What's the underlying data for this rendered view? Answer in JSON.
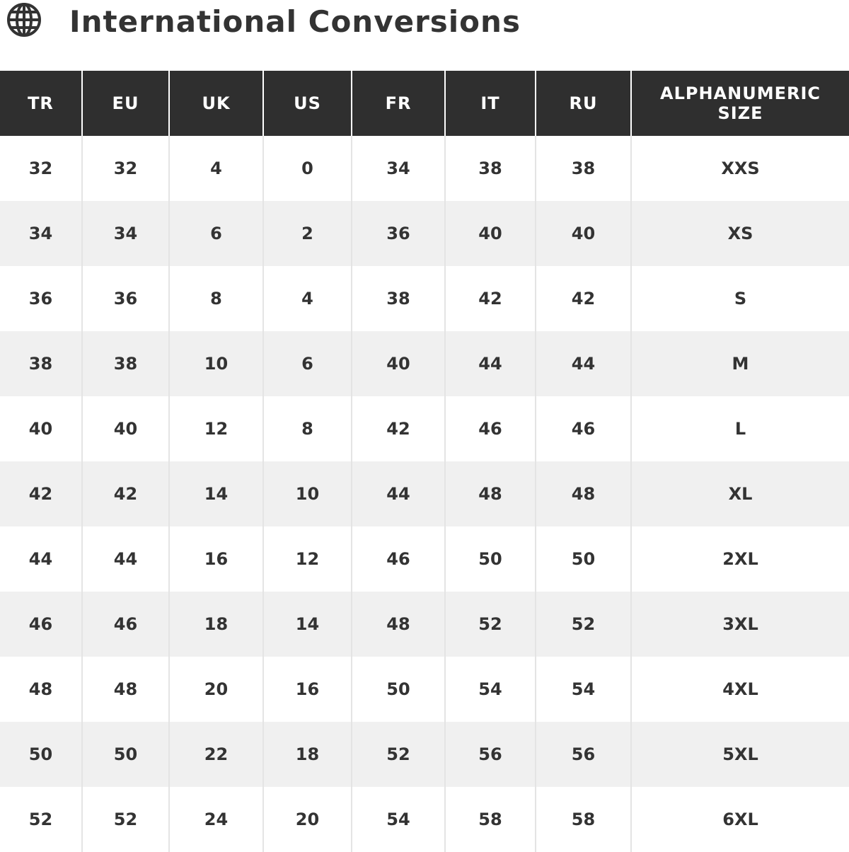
{
  "header": {
    "title": "International Conversions",
    "icon": "globe-icon"
  },
  "table": {
    "columns": [
      "TR",
      "EU",
      "UK",
      "US",
      "FR",
      "IT",
      "RU",
      "ALPHANUMERIC SIZE"
    ],
    "rows": [
      [
        "32",
        "32",
        "4",
        "0",
        "34",
        "38",
        "38",
        "XXS"
      ],
      [
        "34",
        "34",
        "6",
        "2",
        "36",
        "40",
        "40",
        "XS"
      ],
      [
        "36",
        "36",
        "8",
        "4",
        "38",
        "42",
        "42",
        "S"
      ],
      [
        "38",
        "38",
        "10",
        "6",
        "40",
        "44",
        "44",
        "M"
      ],
      [
        "40",
        "40",
        "12",
        "8",
        "42",
        "46",
        "46",
        "L"
      ],
      [
        "42",
        "42",
        "14",
        "10",
        "44",
        "48",
        "48",
        "XL"
      ],
      [
        "44",
        "44",
        "16",
        "12",
        "46",
        "50",
        "50",
        "2XL"
      ],
      [
        "46",
        "46",
        "18",
        "14",
        "48",
        "52",
        "52",
        "3XL"
      ],
      [
        "48",
        "48",
        "20",
        "16",
        "50",
        "54",
        "54",
        "4XL"
      ],
      [
        "50",
        "50",
        "22",
        "18",
        "52",
        "56",
        "56",
        "5XL"
      ],
      [
        "52",
        "52",
        "24",
        "20",
        "54",
        "58",
        "58",
        "6XL"
      ]
    ]
  },
  "colors": {
    "header_bg": "#2f2f2f",
    "alt_row": "#f0f0f0",
    "text": "#333333"
  }
}
